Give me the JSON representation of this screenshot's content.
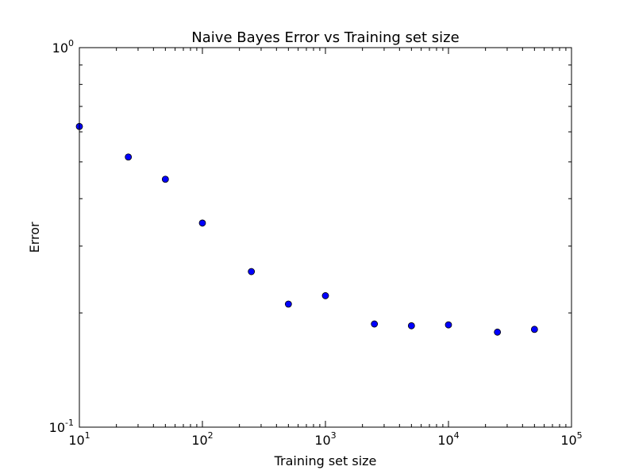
{
  "chart_data": {
    "type": "scatter",
    "title": "Naive Bayes Error vs Training set size",
    "xlabel": "Training set size",
    "ylabel": "Error",
    "xscale": "log",
    "yscale": "log",
    "xlim": [
      10,
      100000
    ],
    "ylim": [
      0.1,
      1
    ],
    "grid": false,
    "legend": "none",
    "marker_color": "#0000ff",
    "x_ticks": [
      {
        "base": "10",
        "exp": "1"
      },
      {
        "base": "10",
        "exp": "2"
      },
      {
        "base": "10",
        "exp": "3"
      },
      {
        "base": "10",
        "exp": "4"
      },
      {
        "base": "10",
        "exp": "5"
      }
    ],
    "y_ticks": [
      {
        "base": "10",
        "exp": "-1"
      },
      {
        "base": "10",
        "exp": "0"
      }
    ],
    "points": [
      {
        "x": 10,
        "y": 0.62
      },
      {
        "x": 25,
        "y": 0.515
      },
      {
        "x": 50,
        "y": 0.45
      },
      {
        "x": 100,
        "y": 0.345
      },
      {
        "x": 250,
        "y": 0.257
      },
      {
        "x": 500,
        "y": 0.211
      },
      {
        "x": 1000,
        "y": 0.222
      },
      {
        "x": 2500,
        "y": 0.187
      },
      {
        "x": 5000,
        "y": 0.185
      },
      {
        "x": 10000,
        "y": 0.186
      },
      {
        "x": 25000,
        "y": 0.178
      },
      {
        "x": 50000,
        "y": 0.181
      }
    ]
  }
}
